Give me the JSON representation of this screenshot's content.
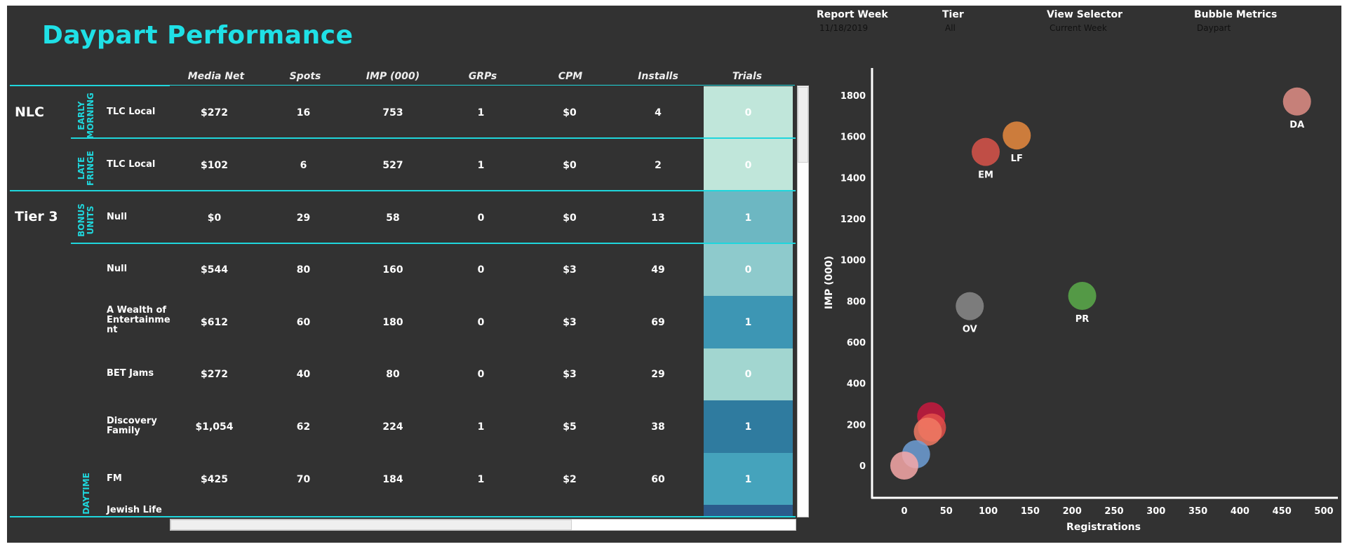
{
  "title": "Daypart Performance",
  "filters": [
    {
      "label": "Report Week",
      "value": "11/18/2019"
    },
    {
      "label": "Tier",
      "value": "All"
    },
    {
      "label": "View Selector",
      "value": "Current Week"
    },
    {
      "label": "Bubble Metrics",
      "value": "Daypart"
    }
  ],
  "table": {
    "headers": [
      "Media Net",
      "Spots",
      "IMP (000)",
      "GRPs",
      "CPM",
      "Installs",
      "Trials"
    ],
    "groups": [
      "NLC",
      "Tier 3"
    ],
    "subgroups": [
      "EARLY\nMORNING",
      "LATE\nFRINGE",
      "BONUS\nUNITS",
      "DAYTIME"
    ],
    "rows": [
      {
        "program": "TLC Local",
        "media_net": "$272",
        "spots": "16",
        "imp": "753",
        "grps": "1",
        "cpm": "$0",
        "installs": "4",
        "trials": "0",
        "trial_color": "#c0e6da"
      },
      {
        "program": "TLC Local",
        "media_net": "$102",
        "spots": "6",
        "imp": "527",
        "grps": "1",
        "cpm": "$0",
        "installs": "2",
        "trials": "0",
        "trial_color": "#c0e6da"
      },
      {
        "program": "Null",
        "media_net": "$0",
        "spots": "29",
        "imp": "58",
        "grps": "0",
        "cpm": "$0",
        "installs": "13",
        "trials": "1",
        "trial_color": "#6db7c2"
      },
      {
        "program": "Null",
        "media_net": "$544",
        "spots": "80",
        "imp": "160",
        "grps": "0",
        "cpm": "$3",
        "installs": "49",
        "trials": "0",
        "trial_color": "#8ecacc"
      },
      {
        "program": "A Wealth of Entertainme nt",
        "media_net": "$612",
        "spots": "60",
        "imp": "180",
        "grps": "0",
        "cpm": "$3",
        "installs": "69",
        "trials": "1",
        "trial_color": "#3d96b4"
      },
      {
        "program": "BET Jams",
        "media_net": "$272",
        "spots": "40",
        "imp": "80",
        "grps": "0",
        "cpm": "$3",
        "installs": "29",
        "trials": "0",
        "trial_color": "#a2d6d0"
      },
      {
        "program": "Discovery Family",
        "media_net": "$1,054",
        "spots": "62",
        "imp": "224",
        "grps": "1",
        "cpm": "$5",
        "installs": "38",
        "trials": "1",
        "trial_color": "#2f7b9f"
      },
      {
        "program": "FM",
        "media_net": "$425",
        "spots": "70",
        "imp": "184",
        "grps": "1",
        "cpm": "$2",
        "installs": "60",
        "trials": "1",
        "trial_color": "#45a3bc"
      },
      {
        "program": "Jewish Life",
        "media_net": "",
        "spots": "",
        "imp": "",
        "grps": "",
        "cpm": "",
        "installs": "",
        "trials": "",
        "trial_color": "#2b5b8c"
      }
    ]
  },
  "chart_data": {
    "type": "scatter",
    "title": "",
    "xlabel": "Registrations",
    "ylabel": "IMP (000)",
    "xlim": [
      -40,
      505
    ],
    "ylim": [
      -150,
      1920
    ],
    "xticks": [
      0,
      50,
      100,
      150,
      200,
      250,
      300,
      350,
      400,
      450,
      500
    ],
    "yticks": [
      0,
      200,
      400,
      600,
      800,
      1000,
      1200,
      1400,
      1600,
      1800
    ],
    "points": [
      {
        "label": "DA",
        "x": 468,
        "y": 1770,
        "color": "#e08e86"
      },
      {
        "label": "LF",
        "x": 134,
        "y": 1605,
        "color": "#e88a3e"
      },
      {
        "label": "EM",
        "x": 97,
        "y": 1525,
        "color": "#d9544a"
      },
      {
        "label": "PR",
        "x": 212,
        "y": 825,
        "color": "#5bab4a"
      },
      {
        "label": "OV",
        "x": 78,
        "y": 775,
        "color": "#8a8a8a"
      },
      {
        "label": "",
        "x": 32,
        "y": 240,
        "color": "#c8193e"
      },
      {
        "label": "",
        "x": 33,
        "y": 185,
        "color": "#e4504a"
      },
      {
        "label": "",
        "x": 28,
        "y": 165,
        "color": "#f07a64"
      },
      {
        "label": "",
        "x": 14,
        "y": 55,
        "color": "#6f9fd6"
      },
      {
        "label": "",
        "x": 0,
        "y": 0,
        "color": "#f7a8a8"
      }
    ]
  }
}
